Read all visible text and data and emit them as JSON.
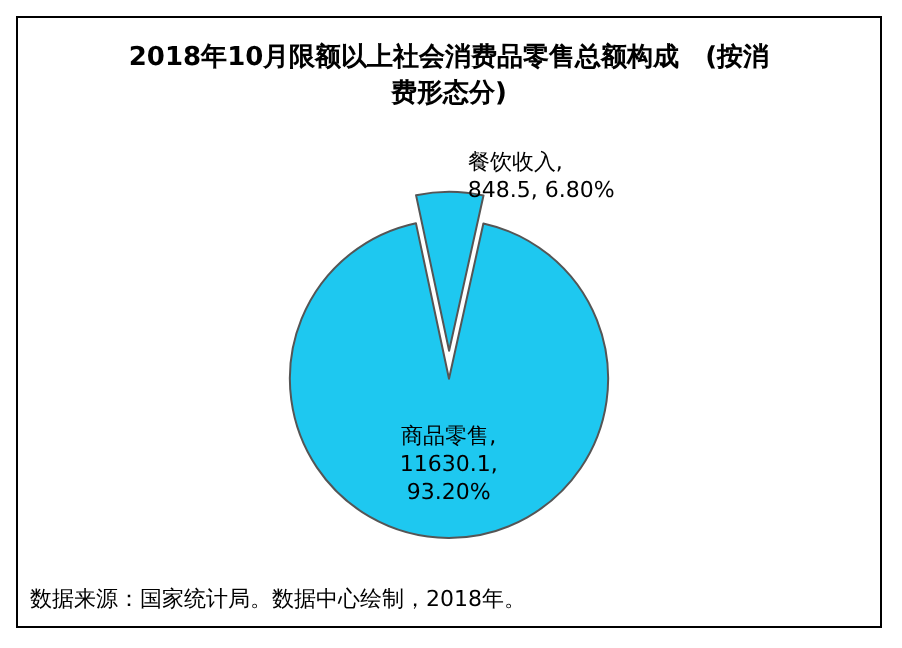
{
  "chart_data": {
    "type": "pie",
    "title": "2018年10月限额以上社会消费品零售总额构成　(按消费形态分)",
    "categories": [
      "餐饮收入",
      "商品零售"
    ],
    "values": [
      848.5,
      11630.1
    ],
    "value_labels": [
      ",\n848.5, 6.80%",
      ",\n11630.1,\n93.20%"
    ],
    "colors": [
      "#1ec8f0",
      "#1ec8f0"
    ],
    "annotations": [
      "数据来源：国家统计局。数据中心绘制，2018年。"
    ]
  }
}
